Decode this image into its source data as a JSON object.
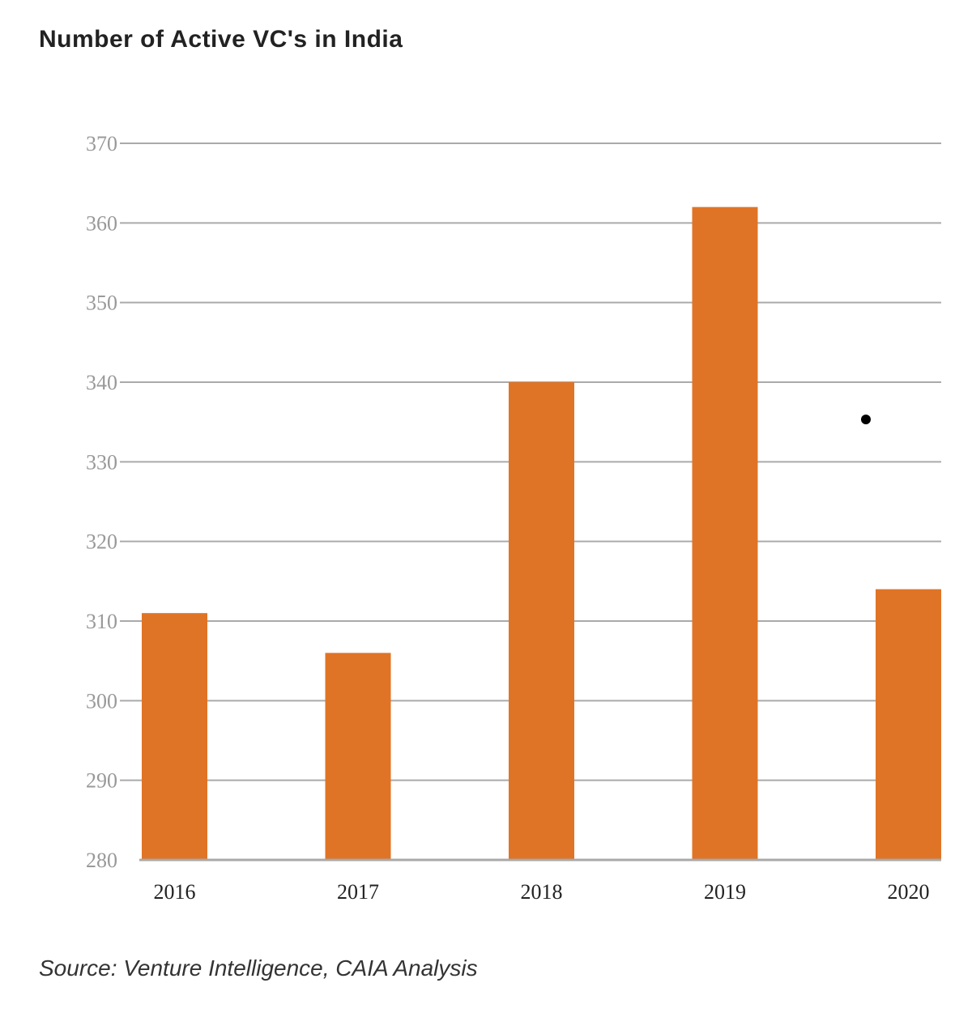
{
  "chart_data": {
    "type": "bar",
    "title": "Number of Active VC's in India",
    "xlabel": "",
    "ylabel": "",
    "categories": [
      "2016",
      "2017",
      "2018",
      "2019",
      "2020"
    ],
    "values": [
      311,
      306,
      340,
      362,
      314
    ],
    "ylim": [
      280,
      370
    ],
    "yticks": [
      "280",
      "290",
      "300",
      "310",
      "320",
      "330",
      "340",
      "350",
      "360",
      "370"
    ],
    "grid": true,
    "legend": "none",
    "bar_color": "#E07426",
    "grid_color": "#AAAAAA",
    "source": "Source: Venture Intelligence, CAIA Analysis"
  }
}
